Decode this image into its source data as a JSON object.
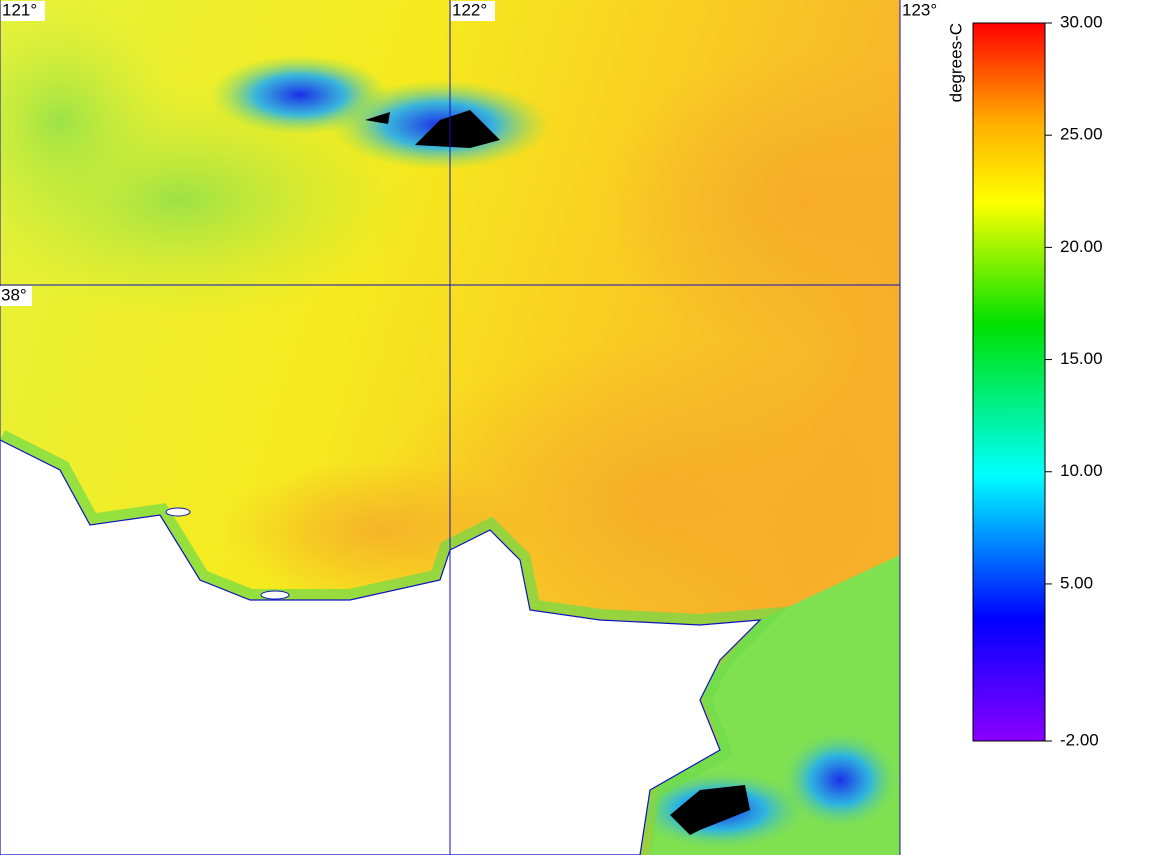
{
  "map": {
    "lonlim": [
      121,
      123
    ],
    "latlim": [
      37,
      38.5
    ],
    "lon_labels": [
      {
        "value": 121,
        "label": "121°"
      },
      {
        "value": 122,
        "label": "122°"
      },
      {
        "value": 123,
        "label": "123°"
      }
    ],
    "lat_labels": [
      {
        "value": 38,
        "label": "38°"
      }
    ]
  },
  "colorbar": {
    "unit": "degrees-C",
    "lim": [
      -2,
      30
    ],
    "ticks": [
      {
        "value": 30,
        "label": "30.00"
      },
      {
        "value": 25,
        "label": "25.00"
      },
      {
        "value": 20,
        "label": "20.00"
      },
      {
        "value": 15,
        "label": "15.00"
      },
      {
        "value": 10,
        "label": "10.00"
      },
      {
        "value": 5,
        "label": "5.00"
      },
      {
        "value": -2,
        "label": "-2.00"
      }
    ]
  }
}
